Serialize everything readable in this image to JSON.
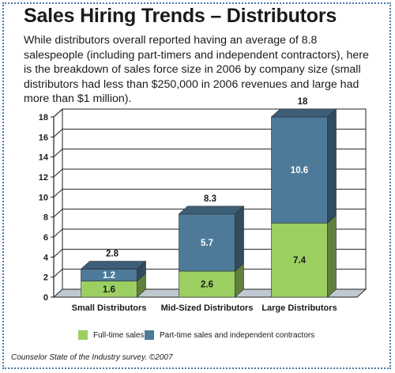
{
  "header": {
    "title": "Sales Hiring Trends – Distributors",
    "subtitle": "While distributors overall reported having an average of 8.8 salespeople (including part-timers and independent contractors), here is the breakdown of sales force size in 2006 by company size (small distributors had less than $250,000 in 2006 revenues and large had more than $1 million)."
  },
  "colors": {
    "fulltime": "#9ccf62",
    "parttime": "#4d7a99",
    "floor": "#bfc9d0",
    "wall": "#ffffff",
    "grid": "#222222"
  },
  "chart_data": {
    "type": "bar",
    "stacked": true,
    "categories": [
      "Small Distributors",
      "Mid-Sized Distributors",
      "Large Distributors"
    ],
    "series": [
      {
        "name": "Full-time sales",
        "values": [
          1.6,
          2.6,
          7.4
        ]
      },
      {
        "name": "Part-time sales and independent contractors",
        "values": [
          1.2,
          5.7,
          10.6
        ]
      }
    ],
    "totals": [
      "2.8",
      "8.3",
      "18"
    ],
    "value_labels": [
      [
        "1.6",
        "2.6",
        "7.4"
      ],
      [
        "1.2",
        "5.7",
        "10.6"
      ]
    ],
    "ylim": [
      0,
      18
    ],
    "yticks": [
      "0",
      "2",
      "4",
      "6",
      "8",
      "10",
      "12",
      "14",
      "16",
      "18"
    ],
    "xlabel": "",
    "ylabel": "",
    "grid": true,
    "legend_position": "bottom"
  },
  "source": "Counselor State of the Industry survey. ©2007"
}
